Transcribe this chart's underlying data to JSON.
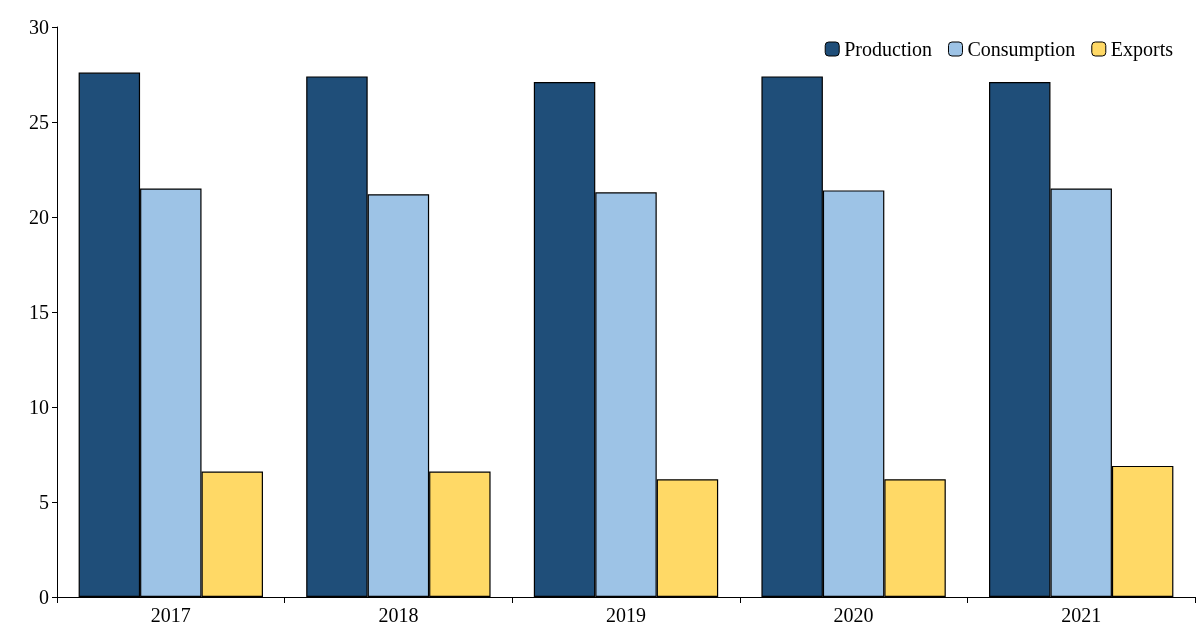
{
  "chart_data": {
    "type": "bar",
    "categories": [
      "2017",
      "2018",
      "2019",
      "2020",
      "2021"
    ],
    "series": [
      {
        "name": "Production",
        "color": "#1f4e79",
        "values": [
          27.6,
          27.4,
          27.1,
          27.4,
          27.1
        ]
      },
      {
        "name": "Consumption",
        "color": "#9dc3e6",
        "values": [
          21.5,
          21.2,
          21.3,
          21.4,
          21.5
        ]
      },
      {
        "name": "Exports",
        "color": "#ffd966",
        "values": [
          6.6,
          6.6,
          6.2,
          6.2,
          6.9
        ]
      }
    ],
    "ylim": [
      0,
      30
    ],
    "yticks": [
      0,
      5,
      10,
      15,
      20,
      25,
      30
    ],
    "grid": false,
    "legend": "top right"
  }
}
